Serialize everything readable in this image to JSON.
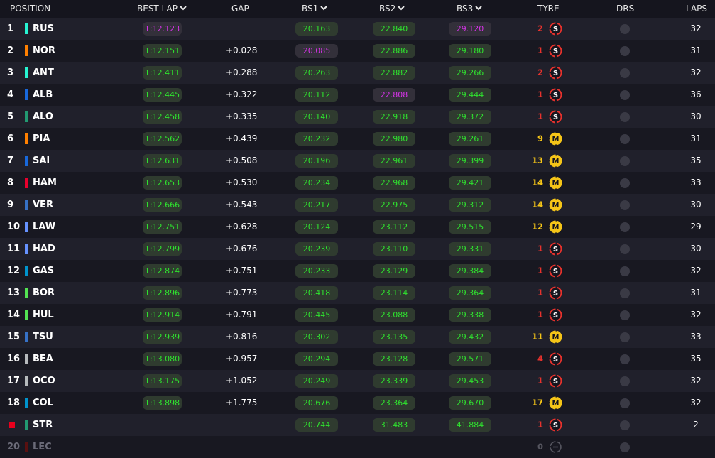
{
  "header": {
    "position": "POSITION",
    "best_lap": "BEST LAP",
    "gap": "GAP",
    "bs1": "BS1",
    "bs2": "BS2",
    "bs3": "BS3",
    "tyre": "TYRE",
    "drs": "DRS",
    "laps": "LAPS"
  },
  "colors": {
    "green": "#2fe22f",
    "purple": "#d633e8",
    "soft": "#e8322d",
    "medium": "#f5c518",
    "retired": "#e8001d"
  },
  "rows": [
    {
      "pos": "1",
      "code": "RUS",
      "team_color": "#27f4d2",
      "best_lap": "1:12.123",
      "best_lap_purple": true,
      "gap": "",
      "bs1": "20.163",
      "bs1_purple": false,
      "bs2": "22.840",
      "bs2_purple": false,
      "bs3": "29.120",
      "bs3_purple": true,
      "tyre_laps": "2",
      "tyre": "S",
      "laps": "32"
    },
    {
      "pos": "2",
      "code": "NOR",
      "team_color": "#ff8000",
      "best_lap": "1:12.151",
      "best_lap_purple": false,
      "gap": "+0.028",
      "bs1": "20.085",
      "bs1_purple": true,
      "bs2": "22.886",
      "bs2_purple": false,
      "bs3": "29.180",
      "bs3_purple": false,
      "tyre_laps": "1",
      "tyre": "S",
      "laps": "31"
    },
    {
      "pos": "3",
      "code": "ANT",
      "team_color": "#27f4d2",
      "best_lap": "1:12.411",
      "best_lap_purple": false,
      "gap": "+0.288",
      "bs1": "20.263",
      "bs1_purple": false,
      "bs2": "22.882",
      "bs2_purple": false,
      "bs3": "29.266",
      "bs3_purple": false,
      "tyre_laps": "2",
      "tyre": "S",
      "laps": "32"
    },
    {
      "pos": "4",
      "code": "ALB",
      "team_color": "#1868db",
      "best_lap": "1:12.445",
      "best_lap_purple": false,
      "gap": "+0.322",
      "bs1": "20.112",
      "bs1_purple": false,
      "bs2": "22.808",
      "bs2_purple": true,
      "bs3": "29.444",
      "bs3_purple": false,
      "tyre_laps": "1",
      "tyre": "S",
      "laps": "36"
    },
    {
      "pos": "5",
      "code": "ALO",
      "team_color": "#229971",
      "best_lap": "1:12.458",
      "best_lap_purple": false,
      "gap": "+0.335",
      "bs1": "20.140",
      "bs1_purple": false,
      "bs2": "22.918",
      "bs2_purple": false,
      "bs3": "29.372",
      "bs3_purple": false,
      "tyre_laps": "1",
      "tyre": "S",
      "laps": "30"
    },
    {
      "pos": "6",
      "code": "PIA",
      "team_color": "#ff8000",
      "best_lap": "1:12.562",
      "best_lap_purple": false,
      "gap": "+0.439",
      "bs1": "20.232",
      "bs1_purple": false,
      "bs2": "22.980",
      "bs2_purple": false,
      "bs3": "29.261",
      "bs3_purple": false,
      "tyre_laps": "9",
      "tyre": "M",
      "laps": "31"
    },
    {
      "pos": "7",
      "code": "SAI",
      "team_color": "#1868db",
      "best_lap": "1:12.631",
      "best_lap_purple": false,
      "gap": "+0.508",
      "bs1": "20.196",
      "bs1_purple": false,
      "bs2": "22.961",
      "bs2_purple": false,
      "bs3": "29.399",
      "bs3_purple": false,
      "tyre_laps": "13",
      "tyre": "M",
      "laps": "35"
    },
    {
      "pos": "8",
      "code": "HAM",
      "team_color": "#e8002d",
      "best_lap": "1:12.653",
      "best_lap_purple": false,
      "gap": "+0.530",
      "bs1": "20.234",
      "bs1_purple": false,
      "bs2": "22.968",
      "bs2_purple": false,
      "bs3": "29.421",
      "bs3_purple": false,
      "tyre_laps": "14",
      "tyre": "M",
      "laps": "33"
    },
    {
      "pos": "9",
      "code": "VER",
      "team_color": "#3671c6",
      "best_lap": "1:12.666",
      "best_lap_purple": false,
      "gap": "+0.543",
      "bs1": "20.217",
      "bs1_purple": false,
      "bs2": "22.975",
      "bs2_purple": false,
      "bs3": "29.312",
      "bs3_purple": false,
      "tyre_laps": "14",
      "tyre": "M",
      "laps": "30"
    },
    {
      "pos": "10",
      "code": "LAW",
      "team_color": "#6692ff",
      "best_lap": "1:12.751",
      "best_lap_purple": false,
      "gap": "+0.628",
      "bs1": "20.124",
      "bs1_purple": false,
      "bs2": "23.112",
      "bs2_purple": false,
      "bs3": "29.515",
      "bs3_purple": false,
      "tyre_laps": "12",
      "tyre": "M",
      "laps": "29"
    },
    {
      "pos": "11",
      "code": "HAD",
      "team_color": "#6692ff",
      "best_lap": "1:12.799",
      "best_lap_purple": false,
      "gap": "+0.676",
      "bs1": "20.239",
      "bs1_purple": false,
      "bs2": "23.110",
      "bs2_purple": false,
      "bs3": "29.331",
      "bs3_purple": false,
      "tyre_laps": "1",
      "tyre": "S",
      "laps": "30"
    },
    {
      "pos": "12",
      "code": "GAS",
      "team_color": "#0093cc",
      "best_lap": "1:12.874",
      "best_lap_purple": false,
      "gap": "+0.751",
      "bs1": "20.233",
      "bs1_purple": false,
      "bs2": "23.129",
      "bs2_purple": false,
      "bs3": "29.384",
      "bs3_purple": false,
      "tyre_laps": "1",
      "tyre": "S",
      "laps": "32"
    },
    {
      "pos": "13",
      "code": "BOR",
      "team_color": "#52e252",
      "best_lap": "1:12.896",
      "best_lap_purple": false,
      "gap": "+0.773",
      "bs1": "20.418",
      "bs1_purple": false,
      "bs2": "23.114",
      "bs2_purple": false,
      "bs3": "29.364",
      "bs3_purple": false,
      "tyre_laps": "1",
      "tyre": "S",
      "laps": "31"
    },
    {
      "pos": "14",
      "code": "HUL",
      "team_color": "#52e252",
      "best_lap": "1:12.914",
      "best_lap_purple": false,
      "gap": "+0.791",
      "bs1": "20.445",
      "bs1_purple": false,
      "bs2": "23.088",
      "bs2_purple": false,
      "bs3": "29.338",
      "bs3_purple": false,
      "tyre_laps": "1",
      "tyre": "S",
      "laps": "32"
    },
    {
      "pos": "15",
      "code": "TSU",
      "team_color": "#3671c6",
      "best_lap": "1:12.939",
      "best_lap_purple": false,
      "gap": "+0.816",
      "bs1": "20.302",
      "bs1_purple": false,
      "bs2": "23.135",
      "bs2_purple": false,
      "bs3": "29.432",
      "bs3_purple": false,
      "tyre_laps": "11",
      "tyre": "M",
      "laps": "33"
    },
    {
      "pos": "16",
      "code": "BEA",
      "team_color": "#b6babd",
      "best_lap": "1:13.080",
      "best_lap_purple": false,
      "gap": "+0.957",
      "bs1": "20.294",
      "bs1_purple": false,
      "bs2": "23.128",
      "bs2_purple": false,
      "bs3": "29.571",
      "bs3_purple": false,
      "tyre_laps": "4",
      "tyre": "S",
      "laps": "35"
    },
    {
      "pos": "17",
      "code": "OCO",
      "team_color": "#b6babd",
      "best_lap": "1:13.175",
      "best_lap_purple": false,
      "gap": "+1.052",
      "bs1": "20.249",
      "bs1_purple": false,
      "bs2": "23.339",
      "bs2_purple": false,
      "bs3": "29.453",
      "bs3_purple": false,
      "tyre_laps": "1",
      "tyre": "S",
      "laps": "32"
    },
    {
      "pos": "18",
      "code": "COL",
      "team_color": "#0093cc",
      "best_lap": "1:13.898",
      "best_lap_purple": false,
      "gap": "+1.775",
      "bs1": "20.676",
      "bs1_purple": false,
      "bs2": "23.364",
      "bs2_purple": false,
      "bs3": "29.670",
      "bs3_purple": false,
      "tyre_laps": "17",
      "tyre": "M",
      "laps": "32"
    },
    {
      "pos": "",
      "code": "STR",
      "team_color": "#229971",
      "retired": true,
      "best_lap": "",
      "best_lap_purple": false,
      "gap": "",
      "bs1": "20.744",
      "bs1_purple": false,
      "bs2": "31.483",
      "bs2_purple": false,
      "bs3": "41.884",
      "bs3_purple": false,
      "tyre_laps": "1",
      "tyre": "S",
      "laps": "2"
    },
    {
      "pos": "20",
      "code": "LEC",
      "team_color": "#5a1010",
      "dim": true,
      "best_lap": "",
      "best_lap_purple": false,
      "gap": "",
      "bs1": "",
      "bs1_purple": false,
      "bs2": "",
      "bs2_purple": false,
      "bs3": "",
      "bs3_purple": false,
      "tyre_laps": "0",
      "tyre": "",
      "laps": ""
    }
  ]
}
